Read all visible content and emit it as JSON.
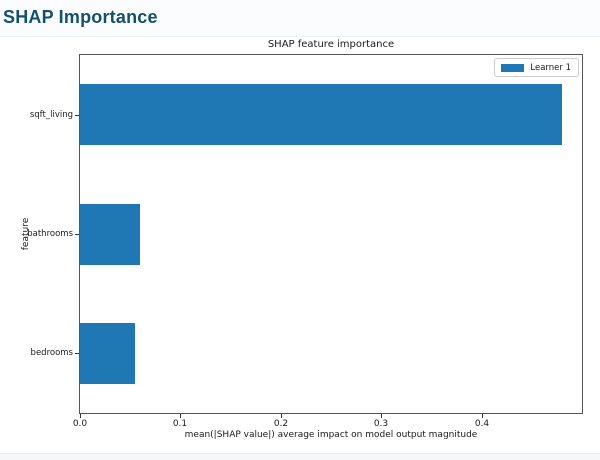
{
  "page": {
    "title": "SHAP Importance"
  },
  "colors": {
    "heading": "#14506e",
    "bar": "#1f77b4",
    "axis_text": "#1a1a1a"
  },
  "chart_data": {
    "type": "bar",
    "orientation": "horizontal",
    "title": "SHAP feature importance",
    "categories": [
      "sqft_living",
      "bathrooms",
      "bedrooms"
    ],
    "values": [
      0.48,
      0.06,
      0.055
    ],
    "xlabel": "mean(|SHAP value|) average impact on model output magnitude",
    "ylabel": "feature",
    "xlim": [
      0,
      0.5
    ],
    "xticks": [
      0.0,
      0.1,
      0.2,
      0.3,
      0.4
    ],
    "xtick_labels": [
      "0.0",
      "0.1",
      "0.2",
      "0.3",
      "0.4"
    ],
    "grid": false,
    "legend": {
      "position": "upper right",
      "entries": [
        {
          "label": "Learner 1",
          "color": "#1f77b4"
        }
      ]
    }
  }
}
